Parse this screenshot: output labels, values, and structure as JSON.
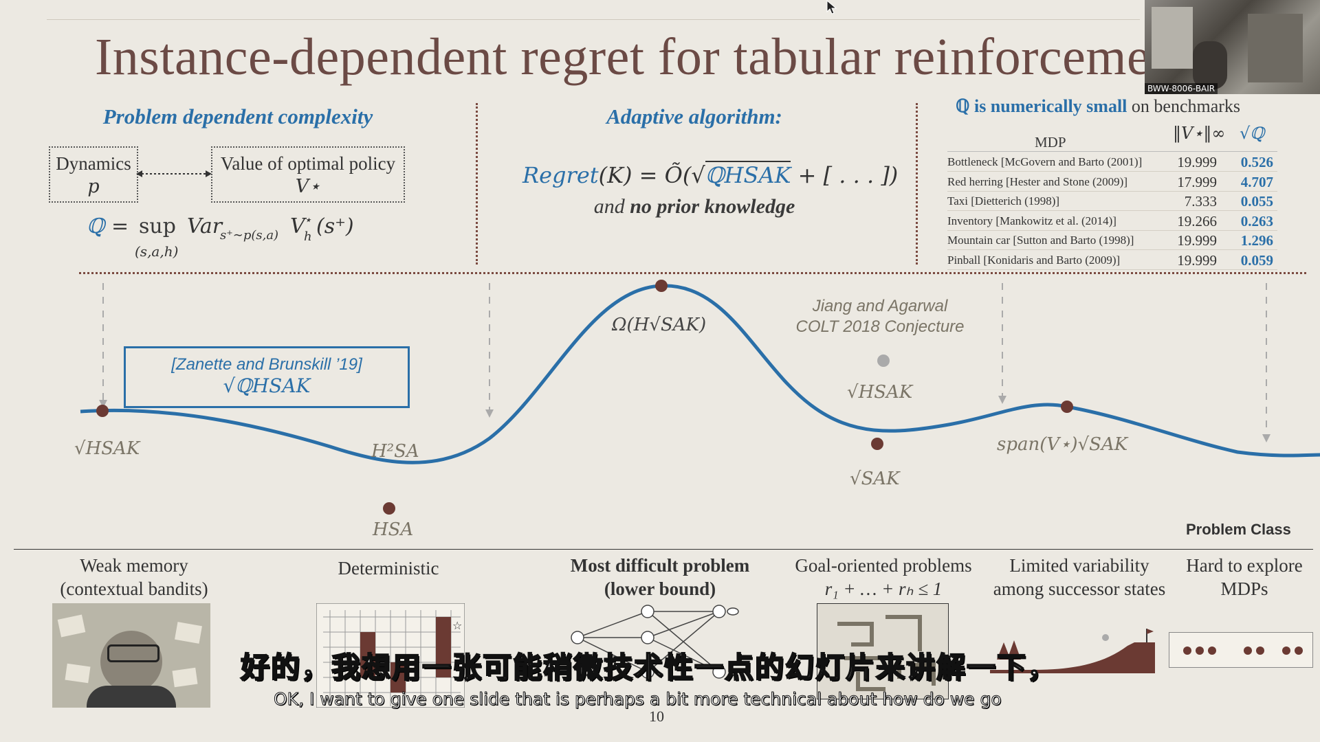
{
  "title": "Instance-dependent regret for tabular reinforcement lear",
  "webcam": {
    "label": "BWW-8006-BAIR"
  },
  "left": {
    "heading": "Problem dependent complexity",
    "dynamics_line1": "Dynamics",
    "dynamics_line2": "p",
    "value_line1": "Value of optimal policy",
    "value_line2": "V⋆",
    "formula_q": "ℚ",
    "formula_eq": "=",
    "formula_sup": "sup",
    "formula_sub": "(s,a,h)",
    "formula_body": "Var",
    "formula_body_sub": "s⁺∼p(s,a)",
    "formula_tail": "V",
    "formula_tail_sup": "⋆",
    "formula_tail_sub": "h",
    "formula_tail_arg": "(s⁺)"
  },
  "middle": {
    "heading": "Adaptive algorithm:",
    "regret_word": "Regret",
    "regret_rest": "(K) = Õ(√",
    "regret_q": "ℚHSAK",
    "regret_end": " + [ . . . ])",
    "line2_a": "and ",
    "line2_b": "no prior knowledge"
  },
  "right": {
    "heading_q": "ℚ is numerically small",
    "heading_rest": " on benchmarks",
    "col_mdp": "MDP",
    "col_v": "‖V⋆‖∞",
    "col_q": "√ℚ",
    "rows": [
      {
        "mdp": "Bottleneck [McGovern and Barto (2001)]",
        "v": "19.999",
        "q": "0.526"
      },
      {
        "mdp": "Red herring [Hester and Stone (2009)]",
        "v": "17.999",
        "q": "4.707"
      },
      {
        "mdp": "Taxi [Dietterich (1998)]",
        "v": "7.333",
        "q": "0.055"
      },
      {
        "mdp": "Inventory [Mankowitz et al. (2014)]",
        "v": "19.266",
        "q": "0.263"
      },
      {
        "mdp": "Mountain car [Sutton and Barto (1998)]",
        "v": "19.999",
        "q": "1.296"
      },
      {
        "mdp": "Pinball [Konidaris and Barto (2009)]",
        "v": "19.999",
        "q": "0.059"
      }
    ]
  },
  "curve": {
    "zanette_line1": "[Zanette and Brunskill ’19]",
    "zanette_line2": "√ℚHSAK",
    "l_hsak": "√HSAK",
    "l_h2sa": "H²SA",
    "l_hsa": "HSA",
    "l_omega": "Ω(H√SAK)",
    "l_jiang1": "Jiang and Agarwal",
    "l_jiang2": "COLT 2018 Conjecture",
    "l_hsak2": "√HSAK",
    "l_sak": "√SAK",
    "l_span": "span(V⋆)√SAK",
    "axis_label": "Problem Class"
  },
  "categories": [
    {
      "line1": "Weak memory",
      "line2": "(contextual bandits)",
      "bold": false
    },
    {
      "line1": "Deterministic",
      "line2": "",
      "bold": false
    },
    {
      "line1": "Most difficult problem",
      "line2": "(lower bound)",
      "bold": true
    },
    {
      "line1": "Goal-oriented problems",
      "line2": "r₁ + … + rₕ ≤ 1",
      "bold": false
    },
    {
      "line1": "Limited variability",
      "line2": "among successor states",
      "bold": false
    },
    {
      "line1": "Hard to explore",
      "line2": "MDPs",
      "bold": false
    }
  ],
  "subtitles": {
    "cn": "好的，我想用一张可能稍微技术性一点的幻灯片来讲解一下，",
    "en": "OK, I want to give one slide that is perhaps a bit more technical about how do we go"
  },
  "page_number": "10",
  "colors": {
    "accent_blue": "#2a6fa8",
    "title_brown": "#6b4a45",
    "dot_brown": "#6b3a33",
    "background": "#ece9e2"
  }
}
